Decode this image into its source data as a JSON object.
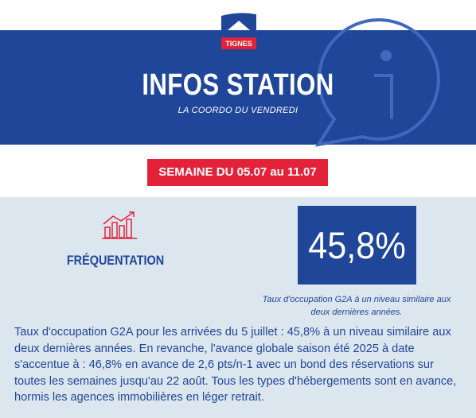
{
  "header": {
    "logo_text": "TIGNES",
    "title": "INFOS STATION",
    "subtitle": "LA COORDO DU VENDREDI"
  },
  "week_label": "SEMAINE DU 05.07 au 11.07",
  "section": {
    "title": "FRÉQUENTATION",
    "stat": "45,8%",
    "caption": "Taux d'occupation G2A à un niveau similaire aux deux dernières années.",
    "body": "Taux d'occupation G2A pour les arrivées du 5 juillet : 45,8% à un niveau similaire aux deux dernières années. En revanche, l'avance globale saison été 2025 à date s'accentue à : 46,8% en avance de 2,6 pts/n-1 avec un bond des réservations sur toutes les semaines jusqu'au 22 août. Tous les types d'hébergements sont en avance, hormis les agences immobilières en léger retrait."
  }
}
